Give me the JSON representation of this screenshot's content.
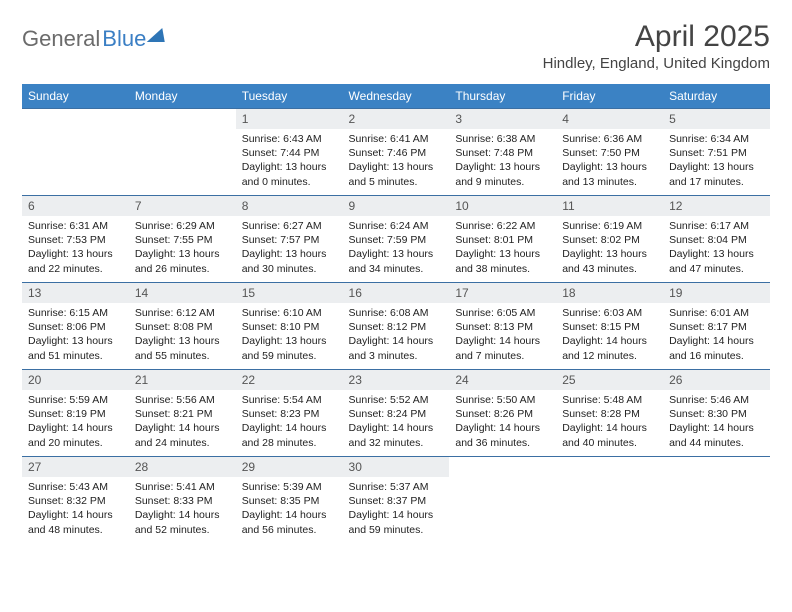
{
  "brand": {
    "part1": "General",
    "part2": "Blue"
  },
  "title": "April 2025",
  "location": "Hindley, England, United Kingdom",
  "styling": {
    "header_bg": "#3b82c4",
    "header_text": "#ffffff",
    "row_border": "#3b6fa3",
    "daynum_bg": "#eceef0",
    "daynum_color": "#555",
    "body_text": "#222",
    "title_color": "#444",
    "title_fontsize": 30,
    "location_fontsize": 15,
    "header_fontsize": 12,
    "daynum_fontsize": 12,
    "cell_fontsize": 10.5
  },
  "daysOfWeek": [
    "Sunday",
    "Monday",
    "Tuesday",
    "Wednesday",
    "Thursday",
    "Friday",
    "Saturday"
  ],
  "weeks": [
    [
      {
        "empty": true
      },
      {
        "empty": true
      },
      {
        "num": "1",
        "sunrise": "6:43 AM",
        "sunset": "7:44 PM",
        "daylight": "13 hours and 0 minutes."
      },
      {
        "num": "2",
        "sunrise": "6:41 AM",
        "sunset": "7:46 PM",
        "daylight": "13 hours and 5 minutes."
      },
      {
        "num": "3",
        "sunrise": "6:38 AM",
        "sunset": "7:48 PM",
        "daylight": "13 hours and 9 minutes."
      },
      {
        "num": "4",
        "sunrise": "6:36 AM",
        "sunset": "7:50 PM",
        "daylight": "13 hours and 13 minutes."
      },
      {
        "num": "5",
        "sunrise": "6:34 AM",
        "sunset": "7:51 PM",
        "daylight": "13 hours and 17 minutes."
      }
    ],
    [
      {
        "num": "6",
        "sunrise": "6:31 AM",
        "sunset": "7:53 PM",
        "daylight": "13 hours and 22 minutes."
      },
      {
        "num": "7",
        "sunrise": "6:29 AM",
        "sunset": "7:55 PM",
        "daylight": "13 hours and 26 minutes."
      },
      {
        "num": "8",
        "sunrise": "6:27 AM",
        "sunset": "7:57 PM",
        "daylight": "13 hours and 30 minutes."
      },
      {
        "num": "9",
        "sunrise": "6:24 AM",
        "sunset": "7:59 PM",
        "daylight": "13 hours and 34 minutes."
      },
      {
        "num": "10",
        "sunrise": "6:22 AM",
        "sunset": "8:01 PM",
        "daylight": "13 hours and 38 minutes."
      },
      {
        "num": "11",
        "sunrise": "6:19 AM",
        "sunset": "8:02 PM",
        "daylight": "13 hours and 43 minutes."
      },
      {
        "num": "12",
        "sunrise": "6:17 AM",
        "sunset": "8:04 PM",
        "daylight": "13 hours and 47 minutes."
      }
    ],
    [
      {
        "num": "13",
        "sunrise": "6:15 AM",
        "sunset": "8:06 PM",
        "daylight": "13 hours and 51 minutes."
      },
      {
        "num": "14",
        "sunrise": "6:12 AM",
        "sunset": "8:08 PM",
        "daylight": "13 hours and 55 minutes."
      },
      {
        "num": "15",
        "sunrise": "6:10 AM",
        "sunset": "8:10 PM",
        "daylight": "13 hours and 59 minutes."
      },
      {
        "num": "16",
        "sunrise": "6:08 AM",
        "sunset": "8:12 PM",
        "daylight": "14 hours and 3 minutes."
      },
      {
        "num": "17",
        "sunrise": "6:05 AM",
        "sunset": "8:13 PM",
        "daylight": "14 hours and 7 minutes."
      },
      {
        "num": "18",
        "sunrise": "6:03 AM",
        "sunset": "8:15 PM",
        "daylight": "14 hours and 12 minutes."
      },
      {
        "num": "19",
        "sunrise": "6:01 AM",
        "sunset": "8:17 PM",
        "daylight": "14 hours and 16 minutes."
      }
    ],
    [
      {
        "num": "20",
        "sunrise": "5:59 AM",
        "sunset": "8:19 PM",
        "daylight": "14 hours and 20 minutes."
      },
      {
        "num": "21",
        "sunrise": "5:56 AM",
        "sunset": "8:21 PM",
        "daylight": "14 hours and 24 minutes."
      },
      {
        "num": "22",
        "sunrise": "5:54 AM",
        "sunset": "8:23 PM",
        "daylight": "14 hours and 28 minutes."
      },
      {
        "num": "23",
        "sunrise": "5:52 AM",
        "sunset": "8:24 PM",
        "daylight": "14 hours and 32 minutes."
      },
      {
        "num": "24",
        "sunrise": "5:50 AM",
        "sunset": "8:26 PM",
        "daylight": "14 hours and 36 minutes."
      },
      {
        "num": "25",
        "sunrise": "5:48 AM",
        "sunset": "8:28 PM",
        "daylight": "14 hours and 40 minutes."
      },
      {
        "num": "26",
        "sunrise": "5:46 AM",
        "sunset": "8:30 PM",
        "daylight": "14 hours and 44 minutes."
      }
    ],
    [
      {
        "num": "27",
        "sunrise": "5:43 AM",
        "sunset": "8:32 PM",
        "daylight": "14 hours and 48 minutes."
      },
      {
        "num": "28",
        "sunrise": "5:41 AM",
        "sunset": "8:33 PM",
        "daylight": "14 hours and 52 minutes."
      },
      {
        "num": "29",
        "sunrise": "5:39 AM",
        "sunset": "8:35 PM",
        "daylight": "14 hours and 56 minutes."
      },
      {
        "num": "30",
        "sunrise": "5:37 AM",
        "sunset": "8:37 PM",
        "daylight": "14 hours and 59 minutes."
      },
      {
        "empty": true
      },
      {
        "empty": true
      },
      {
        "empty": true
      }
    ]
  ],
  "labels": {
    "sunrise": "Sunrise:",
    "sunset": "Sunset:",
    "daylight": "Daylight:"
  }
}
